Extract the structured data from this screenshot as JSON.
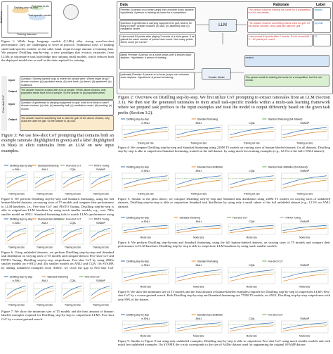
{
  "figure1": {
    "labels": [
      "Distilling step-by-step",
      "Task-specific models",
      "Few-shot LLMs",
      "Training data size",
      "Model size"
    ],
    "caption": "Figure 1: While large language models (LLMs) offer strong zero/few-shot performance, they are challenging to serve in practice. Traditional ways of training small task-specific models, on the other hand, requires large amount of training data. We propose Distilling step-by-step, a new paradigm that extracts rationales from LLMs as informative task knowledge into training small models, which reduces both the deployed model size as well as the data required for training."
  },
  "figure3": {
    "rows": [
      {
        "tag": "Input",
        "text": "Question: Sammy wanted to go to where the people were. Where might he go? Answer choices: (a) populated areas, (b) race track, (c) desert, (d) apartment, (e) roadblock"
      },
      {
        "tag": "Output",
        "text": "The answer must be a place with a lot of people. Of the above choices, only populated areas have a lot of people. So the answer is (a) populated areas."
      },
      {
        "tag": "Input",
        "text": "Question: A gentleman is carrying equipment for golf, what is he likely to have? Answer choices: (a) club, (b) assembly hall, (c) meditation center, (d) meeting, (e) church"
      },
      {
        "tag": "Output",
        "text": "The answer must be something that is used for golf. Of the above choices, only clubs are used for golf. So the answer is (a) club."
      }
    ],
    "side_label": "Few-shot CoT",
    "caption": "Figure 3: We use few-shot CoT prompting that contains both an example rationale (highlighted in green) and a label (highlighted in blue) to elicit rationales from an LLM on new input examples."
  },
  "figure2": {
    "headers": [
      "Data",
      "Rationale",
      "Label"
    ],
    "inputs": [
      "Premise: A person on a horse jumps over a broken down airplane. Hypothesis: A person is training his horse for a competition.",
      "Question: A gentleman is carrying equipment for golf, what is he likely to have? Answer choices: (a) club, (b) assembly hall, (c) meditation center",
      "Luke scored 84 points after playing 2 rounds of a trivia game. If he gained the same number of points each round. How many points did he score per round?"
    ],
    "rationales": [
      "The person could be training his horse for a competition, but it is not certain.",
      "The answer must be something that is used for golf. Of the above choices, only clubs are used for golf.",
      "Luke scored 84 points after 2 rounds. So he scored 84 / 2 = 42 points per round."
    ],
    "labels": [
      "neutral",
      "(a) club",
      "42"
    ],
    "llm": "LLM",
    "small_model": "Smaller Model",
    "task_inputs": [
      "[label] Premise: A person on a horse jumps over a broken down airplane. Hypothesis: A person is training...",
      "[rationale] Premise: A person on a horse jumps over a broken down airplane. Hypothesis: A person is training..."
    ],
    "task_outputs": [
      "neutral",
      "The person could be training his horse for a competition, but it is not certain."
    ],
    "caption": "Figure 2: Overview on Distilling step-by-step. We first utilize CoT prompting to extract rationales from an LLM (Section 3.1). We then use the generated rationales to train small task-specific models within a multi-task learning framework where we prepend task prefixes to the input examples and train the model to output differently based on the given task prefix (Section 3.2)."
  },
  "chart_rows": [
    {
      "legend": [
        "Distilling step-by-step",
        "Standard finetuning",
        "Few-shot CoT",
        "PINTO Tuning"
      ],
      "panels": [
        "e-SNLI",
        "ANLI",
        "CQA",
        "SVAMP"
      ],
      "x_label": "Training set size",
      "caption": "Figure 5: We perform Distilling step-by-step and Standard finetuning, using the full human-labeled datasets, on varying sizes of T5 models and compare their performance to LLM baselines, i.e., Few-shot CoT and PINTO Tuning. Distilling step-by-step is able to outperform LLM baselines by using much smaller models, e.g., over 700x smaller model on ANLI. Standard finetuning fails to match LLM's performance using the same model size."
    },
    {
      "legend": [
        "Distilling step-by-step",
        "Standard task distillation",
        "Few-shot CoT",
        "PINTO Tuning"
      ],
      "panels": [
        "e-SNLI",
        "ANLI",
        "CQA",
        "SVAMP"
      ],
      "x_label": "Training set size",
      "caption": "Figure 6: Using unlabeled datasets, we perform Distilling step-by-step and Standard task distillation on varying sizes of T5 models and compare them to Few-shot CoT and PINTO Tuning. Distilling step-by-step outperforms Few-shot CoT by using 2000x smaller models on e-SNLI and 45x smaller models on ANLI and CQA. On SVAMP, by adding unlabeled examples from ASDiv, we close the gap to Few-shot CoT whereas Standard distillation still struggles."
    },
    {
      "legend": [
        "Distilling step-by-step",
        "Standard finetuning",
        "Few-shot CoT"
      ],
      "panels": [
        "e-SNLI",
        "ANLI",
        "CQA",
        "SVAMP"
      ],
      "x_label": "Training set size",
      "caption": "Figure 7: We show the minimum size of T5 models and the least amount of human-labeled examples required for Distilling step-by-step to outperform LLM's Few-shot CoT by a coarse-grained search."
    },
    {
      "legend": [
        "Distilling step-by-step",
        "Standard finetuning",
        "Standard finetuning (full dataset)"
      ],
      "panels": [
        "e-SNLI",
        "ANLI",
        "CQA",
        "SVAMP"
      ],
      "x_label": "Training set size",
      "caption": "Figure 4: We compare Distilling step-by-step and Standard finetuning using 220M T5 models on varying sizes of human-labeled datasets. On all datasets, Distilling step-by-step is able to outperform Standard finetuning, trained on the full dataset, by using much less training examples (e.g., 12.5% of the full e-SNLI dataset)."
    },
    {
      "legend": [
        "Distilling step-by-step",
        "Standard task distillation",
        "Standard task distillation (full dataset)"
      ],
      "panels": [
        "e-SNLI",
        "ANLI",
        "CQA",
        "SVAMP"
      ],
      "x_label": "Training set size",
      "caption": "Figure 5: Similar to the plots above, we compare Distilling step-by-step and Standard task distillation using 220M T5 models on varying sizes of unlabeled datasets. Distilling step-by-step is able to outperform Standard task distillation by using only a small subset of the full unlabeled dataset (e.g., 12.5% on ANLI dataset)."
    },
    {
      "legend": [
        "Distilling step-by-step",
        "Standard finetuning",
        "Few-shot CoT",
        "PINTO Tuning"
      ],
      "panels": [
        "e-SNLI",
        "ANLI",
        "CQA",
        "SVAMP"
      ],
      "x_label": "Model size",
      "caption": "Figure 6: We perform Distilling step-by-step and Standard finetuning, using the full human-labeled datasets, on varying sizes of T5 models and compare their performance to LLM baselines. Distilling step-by-step is able to outperform LLM baselines by using much smaller models."
    },
    {
      "legend": [
        "Distilling step-by-step",
        "Standard finetuning",
        "Few-shot CoT"
      ],
      "panels": [
        "e-SNLI",
        "ANLI",
        "CQA",
        "SVAMP"
      ],
      "x_label": "Model size",
      "caption": "Figure 8: We show the minimum size of T5 models and the least amount of human-labeled examples required for Distilling step-by-step to outperform LLM's Few-shot CoT by a coarse-grained search. Both Distilling step-by-step and Standard finetuning use 770M T5 models; on ANLI, Distilling step-by-step outperforms with only 80% of the dataset."
    },
    {
      "legend": [
        "Distilling step-by-step",
        "Standard task distillation",
        "Few-shot CoT"
      ],
      "panels": [
        "e-SNLI",
        "ANLI",
        "CQA",
        "SVAMP"
      ],
      "x_label": "Model size",
      "caption": "Figure 9: Similar to Figure 8 but using only unlabeled examples, Distilling step-by-step is able to outperform Few-shot CoT using much smaller models and with much less unlabeled examples. On SVAMP, the x-axis corresponds to the size of ASDiv dataset used for augmenting the original SVAMP dataset."
    }
  ]
}
